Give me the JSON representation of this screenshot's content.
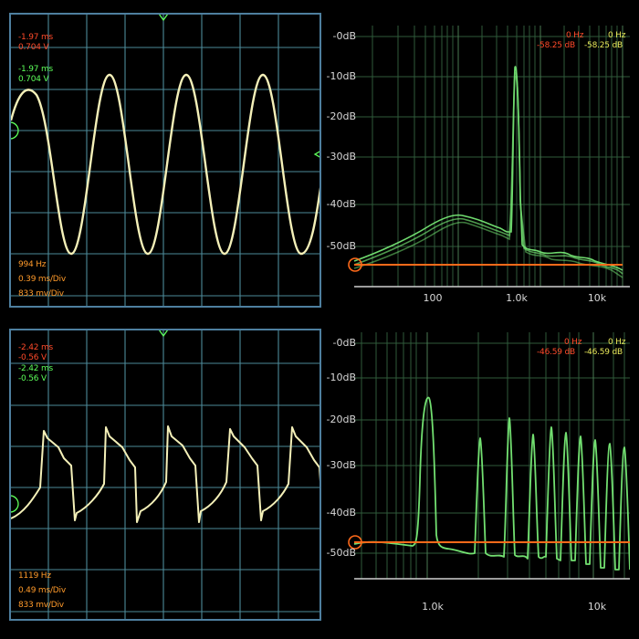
{
  "scope_top": {
    "cursor_time_a": "-1.97 ms",
    "cursor_volt_a": "0.704 V",
    "cursor_time_b": "-1.97 ms",
    "cursor_volt_b": "0.704 V",
    "frequency": "994 Hz",
    "time_div": "0.39 ms/Div",
    "volt_div": "833 mv/Div"
  },
  "scope_bottom": {
    "cursor_time_a": "-2.42 ms",
    "cursor_volt_a": "-0.56 V",
    "cursor_time_b": "-2.42 ms",
    "cursor_volt_b": "-0.56 V",
    "frequency": "1119 Hz",
    "time_div": "0.49 ms/Div",
    "volt_div": "833 mv/Div"
  },
  "spectrum_top": {
    "freq_a": "0 Hz",
    "freq_b": "0 Hz",
    "level_a": "-58.25 dB",
    "level_b": "-58.25 dB",
    "y_labels": [
      "-0dB",
      "-10dB",
      "-20dB",
      "-30dB",
      "-40dB",
      "-50dB"
    ],
    "x_labels": [
      "100",
      "1.0k",
      "10k"
    ]
  },
  "spectrum_bottom": {
    "freq_a": "0 Hz",
    "freq_b": "0 Hz",
    "level_a": "-46.59 dB",
    "level_b": "-46.59 dB",
    "y_labels": [
      "-0dB",
      "-10dB",
      "-20dB",
      "-30dB",
      "-40dB",
      "-50dB"
    ],
    "x_labels": [
      "1.0k",
      "10k"
    ]
  },
  "colors": {
    "trace": "#f4f0b8",
    "grid": "#4d8a98",
    "spectrum_trace": "#7cf27a",
    "cursor": "#ff6a1a",
    "border": "#4e7f9f"
  }
}
